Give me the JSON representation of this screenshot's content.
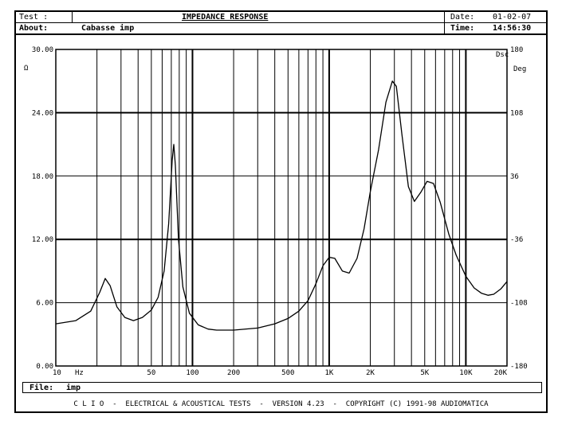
{
  "header": {
    "test_label": "Test :",
    "about_label": "About:",
    "about_value": "Cabasse imp",
    "title": "IMPEDANCE RESPONSE",
    "date_label": "Date:",
    "date_value": "01-02-07",
    "time_label": "Time:",
    "time_value": "14:56:30"
  },
  "file": {
    "label": "File:",
    "value": "imp"
  },
  "footer": "C L I O  -  ELECTRICAL & ACOUSTICAL TESTS  -  VERSION 4.23  -  COPYRIGHT (C) 1991-98 AUDIOMATICA",
  "chart_data": {
    "type": "line",
    "title": "IMPEDANCE RESPONSE",
    "x_scale": "log",
    "xlim": [
      10,
      20000
    ],
    "ylim": [
      0,
      30
    ],
    "y2lim": [
      -180,
      180
    ],
    "xlabel": "Hz",
    "y_axis_unit": "Ω",
    "y2_axis_unit": "Deg",
    "y2_corner_label": "Dsc",
    "grid": true,
    "x_tick_labels": [
      {
        "v": 10,
        "t": "10"
      },
      {
        "v": 50,
        "t": "50"
      },
      {
        "v": 100,
        "t": "100"
      },
      {
        "v": 200,
        "t": "200"
      },
      {
        "v": 500,
        "t": "500"
      },
      {
        "v": 1000,
        "t": "1K"
      },
      {
        "v": 2000,
        "t": "2K"
      },
      {
        "v": 5000,
        "t": "5K"
      },
      {
        "v": 10000,
        "t": "10K"
      },
      {
        "v": 20000,
        "t": "20K"
      }
    ],
    "y_tick_labels": [
      "0.00",
      "6.00",
      "12.00",
      "18.00",
      "24.00",
      "30.00"
    ],
    "y2_tick_labels": [
      "-180",
      "-108",
      "-36",
      "36",
      "108",
      "180"
    ],
    "series": [
      {
        "points": [
          [
            10,
            4.0
          ],
          [
            14,
            4.3
          ],
          [
            18,
            5.2
          ],
          [
            21,
            7.0
          ],
          [
            23,
            8.3
          ],
          [
            25,
            7.6
          ],
          [
            28,
            5.6
          ],
          [
            32,
            4.6
          ],
          [
            37,
            4.3
          ],
          [
            43,
            4.6
          ],
          [
            50,
            5.3
          ],
          [
            56,
            6.5
          ],
          [
            62,
            9.0
          ],
          [
            67,
            13.5
          ],
          [
            71,
            19.5
          ],
          [
            73,
            21.0
          ],
          [
            75,
            19.0
          ],
          [
            79,
            12.0
          ],
          [
            85,
            7.5
          ],
          [
            95,
            5.0
          ],
          [
            110,
            3.9
          ],
          [
            130,
            3.5
          ],
          [
            150,
            3.4
          ],
          [
            200,
            3.4
          ],
          [
            300,
            3.6
          ],
          [
            400,
            4.0
          ],
          [
            500,
            4.5
          ],
          [
            600,
            5.2
          ],
          [
            700,
            6.2
          ],
          [
            800,
            7.8
          ],
          [
            900,
            9.5
          ],
          [
            1000,
            10.3
          ],
          [
            1100,
            10.2
          ],
          [
            1250,
            9.0
          ],
          [
            1400,
            8.8
          ],
          [
            1600,
            10.2
          ],
          [
            1800,
            13.0
          ],
          [
            2000,
            16.5
          ],
          [
            2300,
            20.5
          ],
          [
            2600,
            25.0
          ],
          [
            2900,
            27.0
          ],
          [
            3100,
            26.5
          ],
          [
            3400,
            22.0
          ],
          [
            3800,
            17.0
          ],
          [
            4200,
            15.6
          ],
          [
            4700,
            16.5
          ],
          [
            5200,
            17.5
          ],
          [
            5800,
            17.3
          ],
          [
            6500,
            15.5
          ],
          [
            7500,
            12.5
          ],
          [
            8500,
            10.5
          ],
          [
            10000,
            8.5
          ],
          [
            11500,
            7.4
          ],
          [
            13000,
            6.9
          ],
          [
            14500,
            6.7
          ],
          [
            16000,
            6.8
          ],
          [
            18000,
            7.3
          ],
          [
            20000,
            8.0
          ]
        ]
      }
    ]
  }
}
